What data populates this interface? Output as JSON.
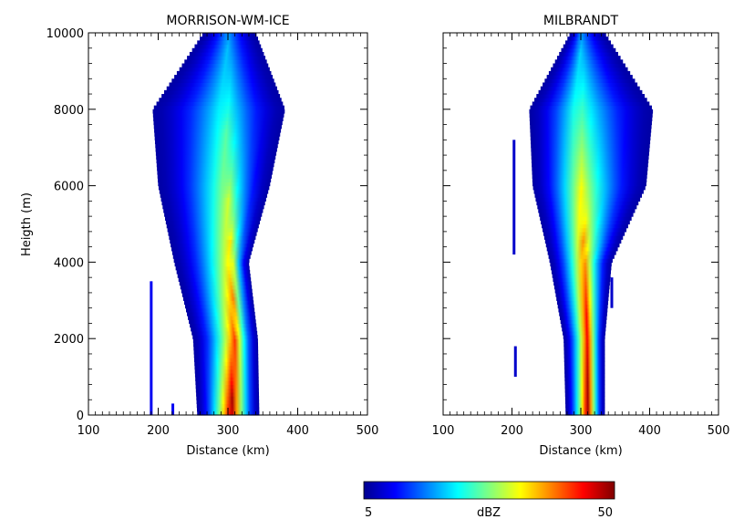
{
  "chart_data": [
    {
      "type": "heatmap",
      "title": "MORRISON-WM-ICE",
      "xlabel": "Distance (km)",
      "ylabel": "Heigth (m)",
      "xlim": [
        100,
        500
      ],
      "ylim": [
        0,
        10000
      ],
      "xticks": [
        "100",
        "200",
        "300",
        "400",
        "500"
      ],
      "yticks": [
        "0",
        "2000",
        "4000",
        "6000",
        "8000",
        "10000"
      ],
      "envelope": [
        {
          "h": 0,
          "left": 256,
          "right": 345
        },
        {
          "h": 2000,
          "left": 250,
          "right": 343
        },
        {
          "h": 4000,
          "left": 223,
          "right": 330
        },
        {
          "h": 6000,
          "left": 200,
          "right": 360
        },
        {
          "h": 8000,
          "left": 192,
          "right": 382
        },
        {
          "h": 10000,
          "left": 265,
          "right": 340
        }
      ],
      "core": [
        {
          "h": 0,
          "x": 305,
          "dbz": 50
        },
        {
          "h": 2000,
          "x": 310,
          "dbz": 42
        },
        {
          "h": 4000,
          "x": 305,
          "dbz": 36
        },
        {
          "h": 6000,
          "x": 300,
          "dbz": 30
        },
        {
          "h": 8000,
          "x": 297,
          "dbz": 24
        },
        {
          "h": 10000,
          "x": 300,
          "dbz": 18
        }
      ],
      "isolated_cells": [
        {
          "x": 190,
          "h0": 0,
          "h1": 3500,
          "dbz": 10
        },
        {
          "x": 221,
          "h0": 0,
          "h1": 300,
          "dbz": 10
        }
      ]
    },
    {
      "type": "heatmap",
      "title": "MILBRANDT",
      "xlabel": "Distance (km)",
      "ylabel": "",
      "xlim": [
        100,
        500
      ],
      "ylim": [
        0,
        10000
      ],
      "xticks": [
        "100",
        "200",
        "300",
        "400",
        "500"
      ],
      "yticks": [],
      "envelope": [
        {
          "h": 0,
          "left": 278,
          "right": 335
        },
        {
          "h": 2000,
          "left": 275,
          "right": 335
        },
        {
          "h": 4000,
          "left": 255,
          "right": 345
        },
        {
          "h": 6000,
          "left": 230,
          "right": 395
        },
        {
          "h": 8000,
          "left": 225,
          "right": 405
        },
        {
          "h": 10000,
          "left": 285,
          "right": 335
        }
      ],
      "core": [
        {
          "h": 0,
          "x": 310,
          "dbz": 50
        },
        {
          "h": 2000,
          "x": 310,
          "dbz": 46
        },
        {
          "h": 4000,
          "x": 305,
          "dbz": 40
        },
        {
          "h": 6000,
          "x": 300,
          "dbz": 33
        },
        {
          "h": 8000,
          "x": 297,
          "dbz": 26
        },
        {
          "h": 10000,
          "x": 300,
          "dbz": 18
        }
      ],
      "isolated_cells": [
        {
          "x": 203,
          "h0": 4200,
          "h1": 7200,
          "dbz": 8
        },
        {
          "x": 205,
          "h0": 1000,
          "h1": 1800,
          "dbz": 8
        },
        {
          "x": 345,
          "h0": 2800,
          "h1": 3600,
          "dbz": 8
        }
      ]
    }
  ],
  "colorbar": {
    "label": "dBZ",
    "min_label": "5",
    "max_label": "50",
    "range": [
      5,
      50
    ],
    "colors": [
      "#00008f",
      "#0000ff",
      "#0080ff",
      "#00ffff",
      "#80ff80",
      "#ffff00",
      "#ff8000",
      "#ff0000",
      "#800000"
    ]
  }
}
